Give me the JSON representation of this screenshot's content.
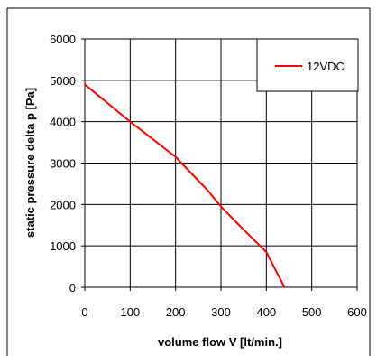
{
  "chart_data": {
    "type": "line",
    "title": "",
    "xlabel": "volume flow V  [lt/min.]",
    "ylabel": "static pressure  delta p  [Pa]",
    "xlim": [
      0,
      600
    ],
    "ylim": [
      0,
      6000
    ],
    "xticks": [
      0,
      100,
      200,
      300,
      400,
      500,
      600
    ],
    "yticks": [
      0,
      1000,
      2000,
      3000,
      4000,
      5000,
      6000
    ],
    "grid": true,
    "legend_position": "top-right",
    "series": [
      {
        "name": "12VDC",
        "color": "#ff0000",
        "x": [
          0,
          100,
          200,
          270,
          300,
          340,
          400,
          440
        ],
        "y": [
          4900,
          4000,
          3150,
          2350,
          1950,
          1500,
          850,
          0
        ]
      }
    ]
  }
}
